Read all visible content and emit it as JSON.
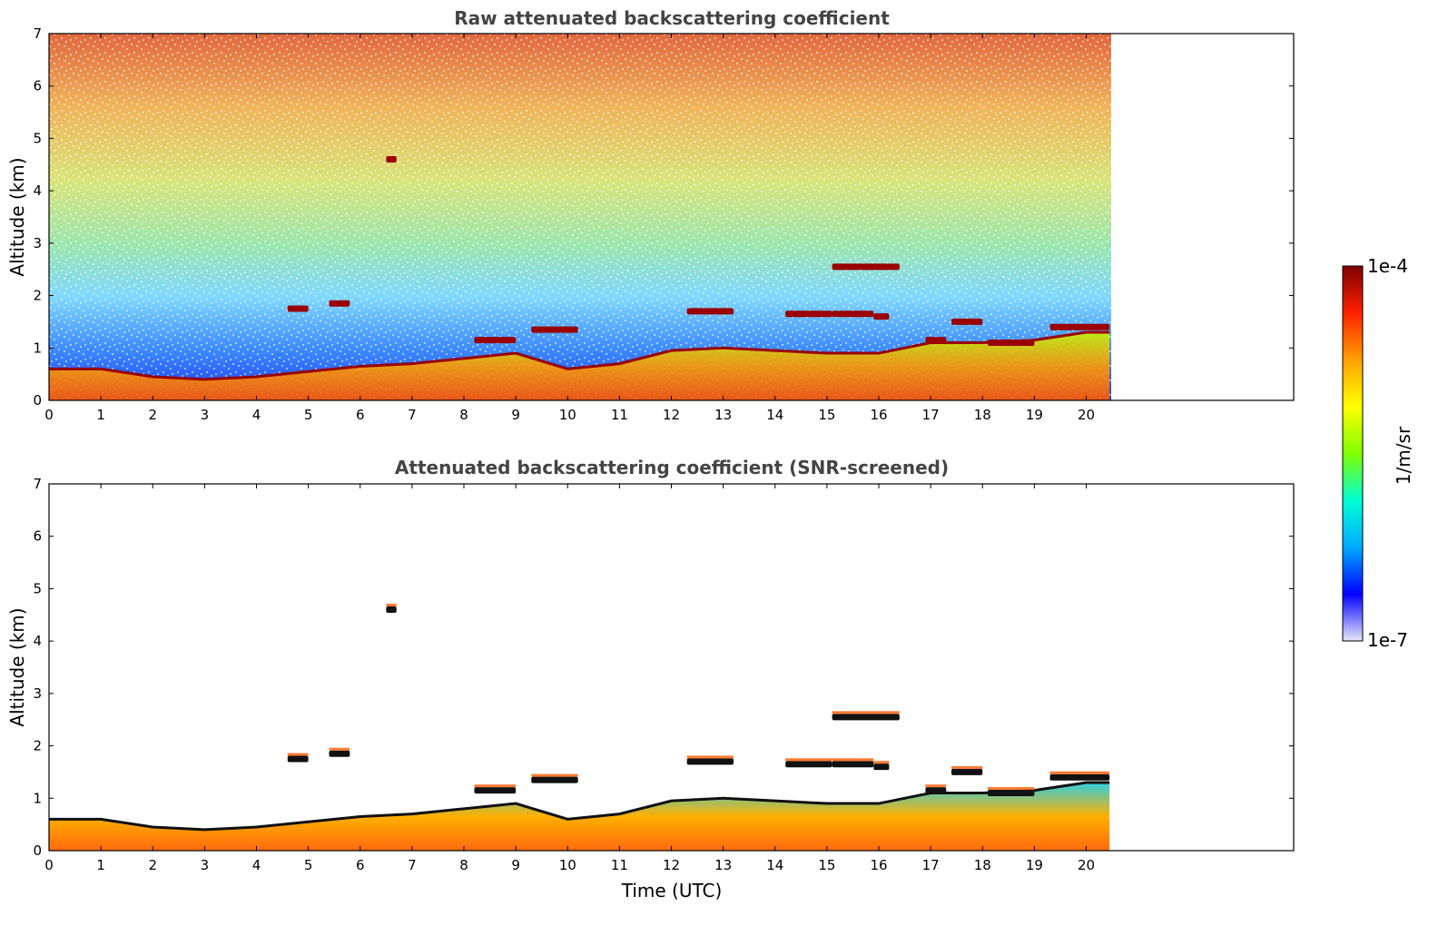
{
  "chart_data": [
    {
      "type": "heatmap",
      "title": "Raw attenuated backscattering coefficient",
      "xlabel": "",
      "ylabel": "Altitude (km)",
      "xlim": [
        0,
        24
      ],
      "ylim": [
        0,
        7
      ],
      "data_extent_x": [
        0,
        20.45
      ],
      "xticks": [
        "0",
        "1",
        "2",
        "3",
        "4",
        "5",
        "6",
        "7",
        "8",
        "9",
        "10",
        "11",
        "12",
        "13",
        "14",
        "15",
        "16",
        "17",
        "18",
        "19",
        "20"
      ],
      "yticks": [
        "0",
        "1",
        "2",
        "3",
        "4",
        "5",
        "6",
        "7"
      ],
      "features": {
        "boundary_layer_top_km": [
          [
            0,
            0.6
          ],
          [
            1,
            0.6
          ],
          [
            2,
            0.45
          ],
          [
            3,
            0.4
          ],
          [
            4,
            0.45
          ],
          [
            5,
            0.55
          ],
          [
            6,
            0.65
          ],
          [
            7,
            0.7
          ],
          [
            8,
            0.8
          ],
          [
            9,
            0.9
          ],
          [
            10,
            0.6
          ],
          [
            11,
            0.7
          ],
          [
            12,
            0.95
          ],
          [
            13,
            1.0
          ],
          [
            14,
            0.95
          ],
          [
            15,
            0.9
          ],
          [
            16,
            0.9
          ],
          [
            17,
            1.1
          ],
          [
            18,
            1.1
          ],
          [
            19,
            1.15
          ],
          [
            20,
            1.3
          ],
          [
            20.45,
            1.3
          ]
        ],
        "cloud_layers": [
          {
            "t0": 4.6,
            "t1": 5.0,
            "alt": 1.75
          },
          {
            "t0": 5.4,
            "t1": 5.8,
            "alt": 1.85
          },
          {
            "t0": 6.5,
            "t1": 6.7,
            "alt": 4.6
          },
          {
            "t0": 8.2,
            "t1": 9.0,
            "alt": 1.15
          },
          {
            "t0": 9.3,
            "t1": 10.2,
            "alt": 1.35
          },
          {
            "t0": 12.3,
            "t1": 13.2,
            "alt": 1.7
          },
          {
            "t0": 14.2,
            "t1": 15.1,
            "alt": 1.65
          },
          {
            "t0": 15.1,
            "t1": 15.9,
            "alt": 1.65
          },
          {
            "t0": 15.9,
            "t1": 16.2,
            "alt": 1.6
          },
          {
            "t0": 15.1,
            "t1": 16.4,
            "alt": 2.55
          },
          {
            "t0": 16.9,
            "t1": 17.3,
            "alt": 1.15
          },
          {
            "t0": 17.4,
            "t1": 18.0,
            "alt": 1.5
          },
          {
            "t0": 18.1,
            "t1": 19.0,
            "alt": 1.1
          },
          {
            "t0": 19.3,
            "t1": 20.45,
            "alt": 1.4
          }
        ]
      }
    },
    {
      "type": "heatmap",
      "title": "Attenuated backscattering coefficient (SNR-screened)",
      "xlabel": "Time (UTC)",
      "ylabel": "Altitude (km)",
      "xlim": [
        0,
        24
      ],
      "ylim": [
        0,
        7
      ],
      "data_extent_x": [
        0,
        20.45
      ],
      "xticks": [
        "0",
        "1",
        "2",
        "3",
        "4",
        "5",
        "6",
        "7",
        "8",
        "9",
        "10",
        "11",
        "12",
        "13",
        "14",
        "15",
        "16",
        "17",
        "18",
        "19",
        "20"
      ],
      "yticks": [
        "0",
        "1",
        "2",
        "3",
        "4",
        "5",
        "6",
        "7"
      ],
      "screening": "low-SNR pixels masked (white)"
    }
  ],
  "colorbar": {
    "label": "1/m/sr",
    "max_label": "1e-4",
    "min_label": "1e-7",
    "scale": "log",
    "colormap": "jet",
    "colors": [
      "#e6e6fa",
      "#0000ff",
      "#00aaff",
      "#00ffd5",
      "#7fff00",
      "#ffff00",
      "#ffa000",
      "#ff2000",
      "#800000"
    ]
  }
}
